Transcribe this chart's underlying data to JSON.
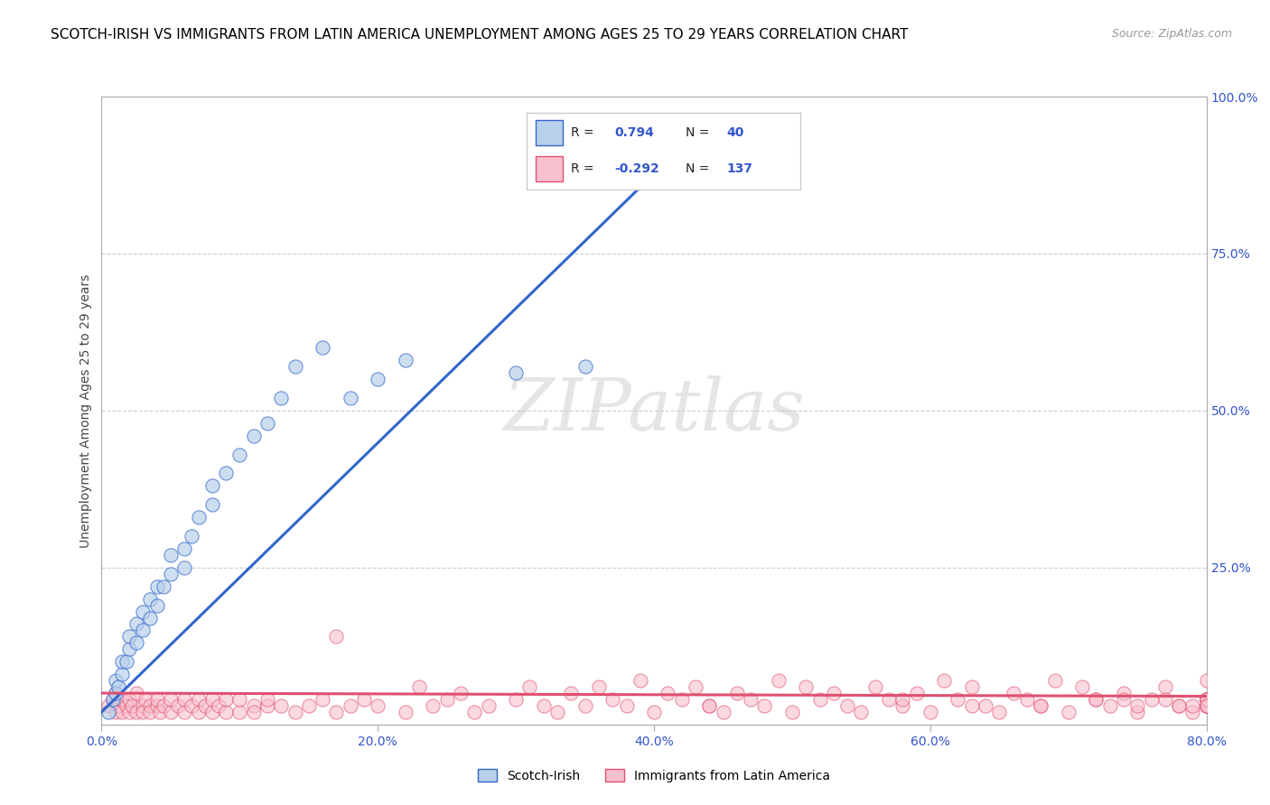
{
  "title": "SCOTCH-IRISH VS IMMIGRANTS FROM LATIN AMERICA UNEMPLOYMENT AMONG AGES 25 TO 29 YEARS CORRELATION CHART",
  "source": "Source: ZipAtlas.com",
  "ylabel": "Unemployment Among Ages 25 to 29 years",
  "xlim": [
    0,
    0.8
  ],
  "ylim": [
    0,
    1.0
  ],
  "xtick_labels": [
    "0.0%",
    "",
    "20.0%",
    "",
    "40.0%",
    "",
    "60.0%",
    "",
    "80.0%"
  ],
  "xtick_vals": [
    0,
    0.1,
    0.2,
    0.3,
    0.4,
    0.5,
    0.6,
    0.7,
    0.8
  ],
  "ytick_labels_right": [
    "25.0%",
    "50.0%",
    "75.0%",
    "100.0%"
  ],
  "ytick_vals_right": [
    0.25,
    0.5,
    0.75,
    1.0
  ],
  "ytick_vals": [
    0.0,
    0.25,
    0.5,
    0.75,
    1.0
  ],
  "blue_R": 0.794,
  "blue_N": 40,
  "pink_R": -0.292,
  "pink_N": 137,
  "blue_color": "#b8d0ea",
  "blue_line_color": "#3366cc",
  "pink_color": "#f9c0ce",
  "pink_line_color": "#e05070",
  "legend_blue_label": "Scotch-Irish",
  "legend_pink_label": "Immigrants from Latin America",
  "watermark": "ZIPatlas",
  "background_color": "#ffffff",
  "grid_color": "#cccccc",
  "title_fontsize": 11,
  "blue_scatter_x": [
    0.005,
    0.008,
    0.01,
    0.01,
    0.012,
    0.015,
    0.015,
    0.018,
    0.02,
    0.02,
    0.025,
    0.025,
    0.03,
    0.03,
    0.035,
    0.035,
    0.04,
    0.04,
    0.045,
    0.05,
    0.05,
    0.06,
    0.06,
    0.065,
    0.07,
    0.08,
    0.08,
    0.09,
    0.1,
    0.11,
    0.12,
    0.13,
    0.14,
    0.16,
    0.18,
    0.2,
    0.22,
    0.3,
    0.35,
    0.37
  ],
  "blue_scatter_y": [
    0.02,
    0.04,
    0.05,
    0.07,
    0.06,
    0.08,
    0.1,
    0.1,
    0.12,
    0.14,
    0.13,
    0.16,
    0.15,
    0.18,
    0.17,
    0.2,
    0.19,
    0.22,
    0.22,
    0.24,
    0.27,
    0.28,
    0.25,
    0.3,
    0.33,
    0.35,
    0.38,
    0.4,
    0.43,
    0.46,
    0.48,
    0.52,
    0.57,
    0.6,
    0.52,
    0.55,
    0.58,
    0.56,
    0.57,
    0.96
  ],
  "pink_scatter_x": [
    0.005,
    0.008,
    0.01,
    0.01,
    0.012,
    0.015,
    0.015,
    0.018,
    0.02,
    0.02,
    0.022,
    0.025,
    0.025,
    0.03,
    0.03,
    0.032,
    0.035,
    0.035,
    0.04,
    0.04,
    0.042,
    0.045,
    0.05,
    0.05,
    0.055,
    0.06,
    0.06,
    0.065,
    0.07,
    0.07,
    0.075,
    0.08,
    0.08,
    0.085,
    0.09,
    0.09,
    0.1,
    0.1,
    0.11,
    0.11,
    0.12,
    0.12,
    0.13,
    0.14,
    0.15,
    0.16,
    0.17,
    0.18,
    0.19,
    0.2,
    0.22,
    0.24,
    0.25,
    0.27,
    0.28,
    0.3,
    0.32,
    0.33,
    0.35,
    0.37,
    0.38,
    0.4,
    0.42,
    0.44,
    0.45,
    0.47,
    0.48,
    0.5,
    0.52,
    0.54,
    0.55,
    0.57,
    0.58,
    0.6,
    0.62,
    0.64,
    0.65,
    0.67,
    0.68,
    0.7,
    0.72,
    0.73,
    0.75,
    0.76,
    0.78,
    0.79,
    0.17,
    0.23,
    0.26,
    0.31,
    0.34,
    0.36,
    0.39,
    0.41,
    0.43,
    0.46,
    0.49,
    0.51,
    0.53,
    0.56,
    0.59,
    0.61,
    0.63,
    0.66,
    0.69,
    0.71,
    0.74,
    0.77,
    0.8,
    0.44,
    0.58,
    0.63,
    0.72,
    0.75,
    0.77,
    0.79,
    0.8,
    0.68,
    0.74,
    0.78,
    0.8,
    0.8,
    0.8,
    0.8,
    0.8,
    0.8,
    0.8,
    0.8,
    0.8,
    0.8,
    0.8,
    0.8,
    0.8,
    0.8,
    0.8,
    0.8
  ],
  "pink_scatter_y": [
    0.03,
    0.04,
    0.02,
    0.05,
    0.03,
    0.02,
    0.04,
    0.03,
    0.02,
    0.04,
    0.03,
    0.02,
    0.05,
    0.03,
    0.02,
    0.04,
    0.03,
    0.02,
    0.03,
    0.04,
    0.02,
    0.03,
    0.02,
    0.04,
    0.03,
    0.02,
    0.04,
    0.03,
    0.02,
    0.04,
    0.03,
    0.02,
    0.04,
    0.03,
    0.02,
    0.04,
    0.02,
    0.04,
    0.03,
    0.02,
    0.03,
    0.04,
    0.03,
    0.02,
    0.03,
    0.04,
    0.02,
    0.03,
    0.04,
    0.03,
    0.02,
    0.03,
    0.04,
    0.02,
    0.03,
    0.04,
    0.03,
    0.02,
    0.03,
    0.04,
    0.03,
    0.02,
    0.04,
    0.03,
    0.02,
    0.04,
    0.03,
    0.02,
    0.04,
    0.03,
    0.02,
    0.04,
    0.03,
    0.02,
    0.04,
    0.03,
    0.02,
    0.04,
    0.03,
    0.02,
    0.04,
    0.03,
    0.02,
    0.04,
    0.03,
    0.02,
    0.14,
    0.06,
    0.05,
    0.06,
    0.05,
    0.06,
    0.07,
    0.05,
    0.06,
    0.05,
    0.07,
    0.06,
    0.05,
    0.06,
    0.05,
    0.07,
    0.06,
    0.05,
    0.07,
    0.06,
    0.05,
    0.06,
    0.07,
    0.03,
    0.04,
    0.03,
    0.04,
    0.03,
    0.04,
    0.03,
    0.04,
    0.03,
    0.04,
    0.03,
    0.04,
    0.03,
    0.04,
    0.03,
    0.04,
    0.03,
    0.04,
    0.03,
    0.04,
    0.03,
    0.04,
    0.03,
    0.04,
    0.03,
    0.04,
    0.03
  ],
  "blue_trendline_x": [
    0.0,
    0.42
  ],
  "blue_trendline_y": [
    0.02,
    0.92
  ],
  "pink_trendline_x": [
    0.0,
    0.8
  ],
  "pink_trendline_y": [
    0.05,
    0.045
  ]
}
